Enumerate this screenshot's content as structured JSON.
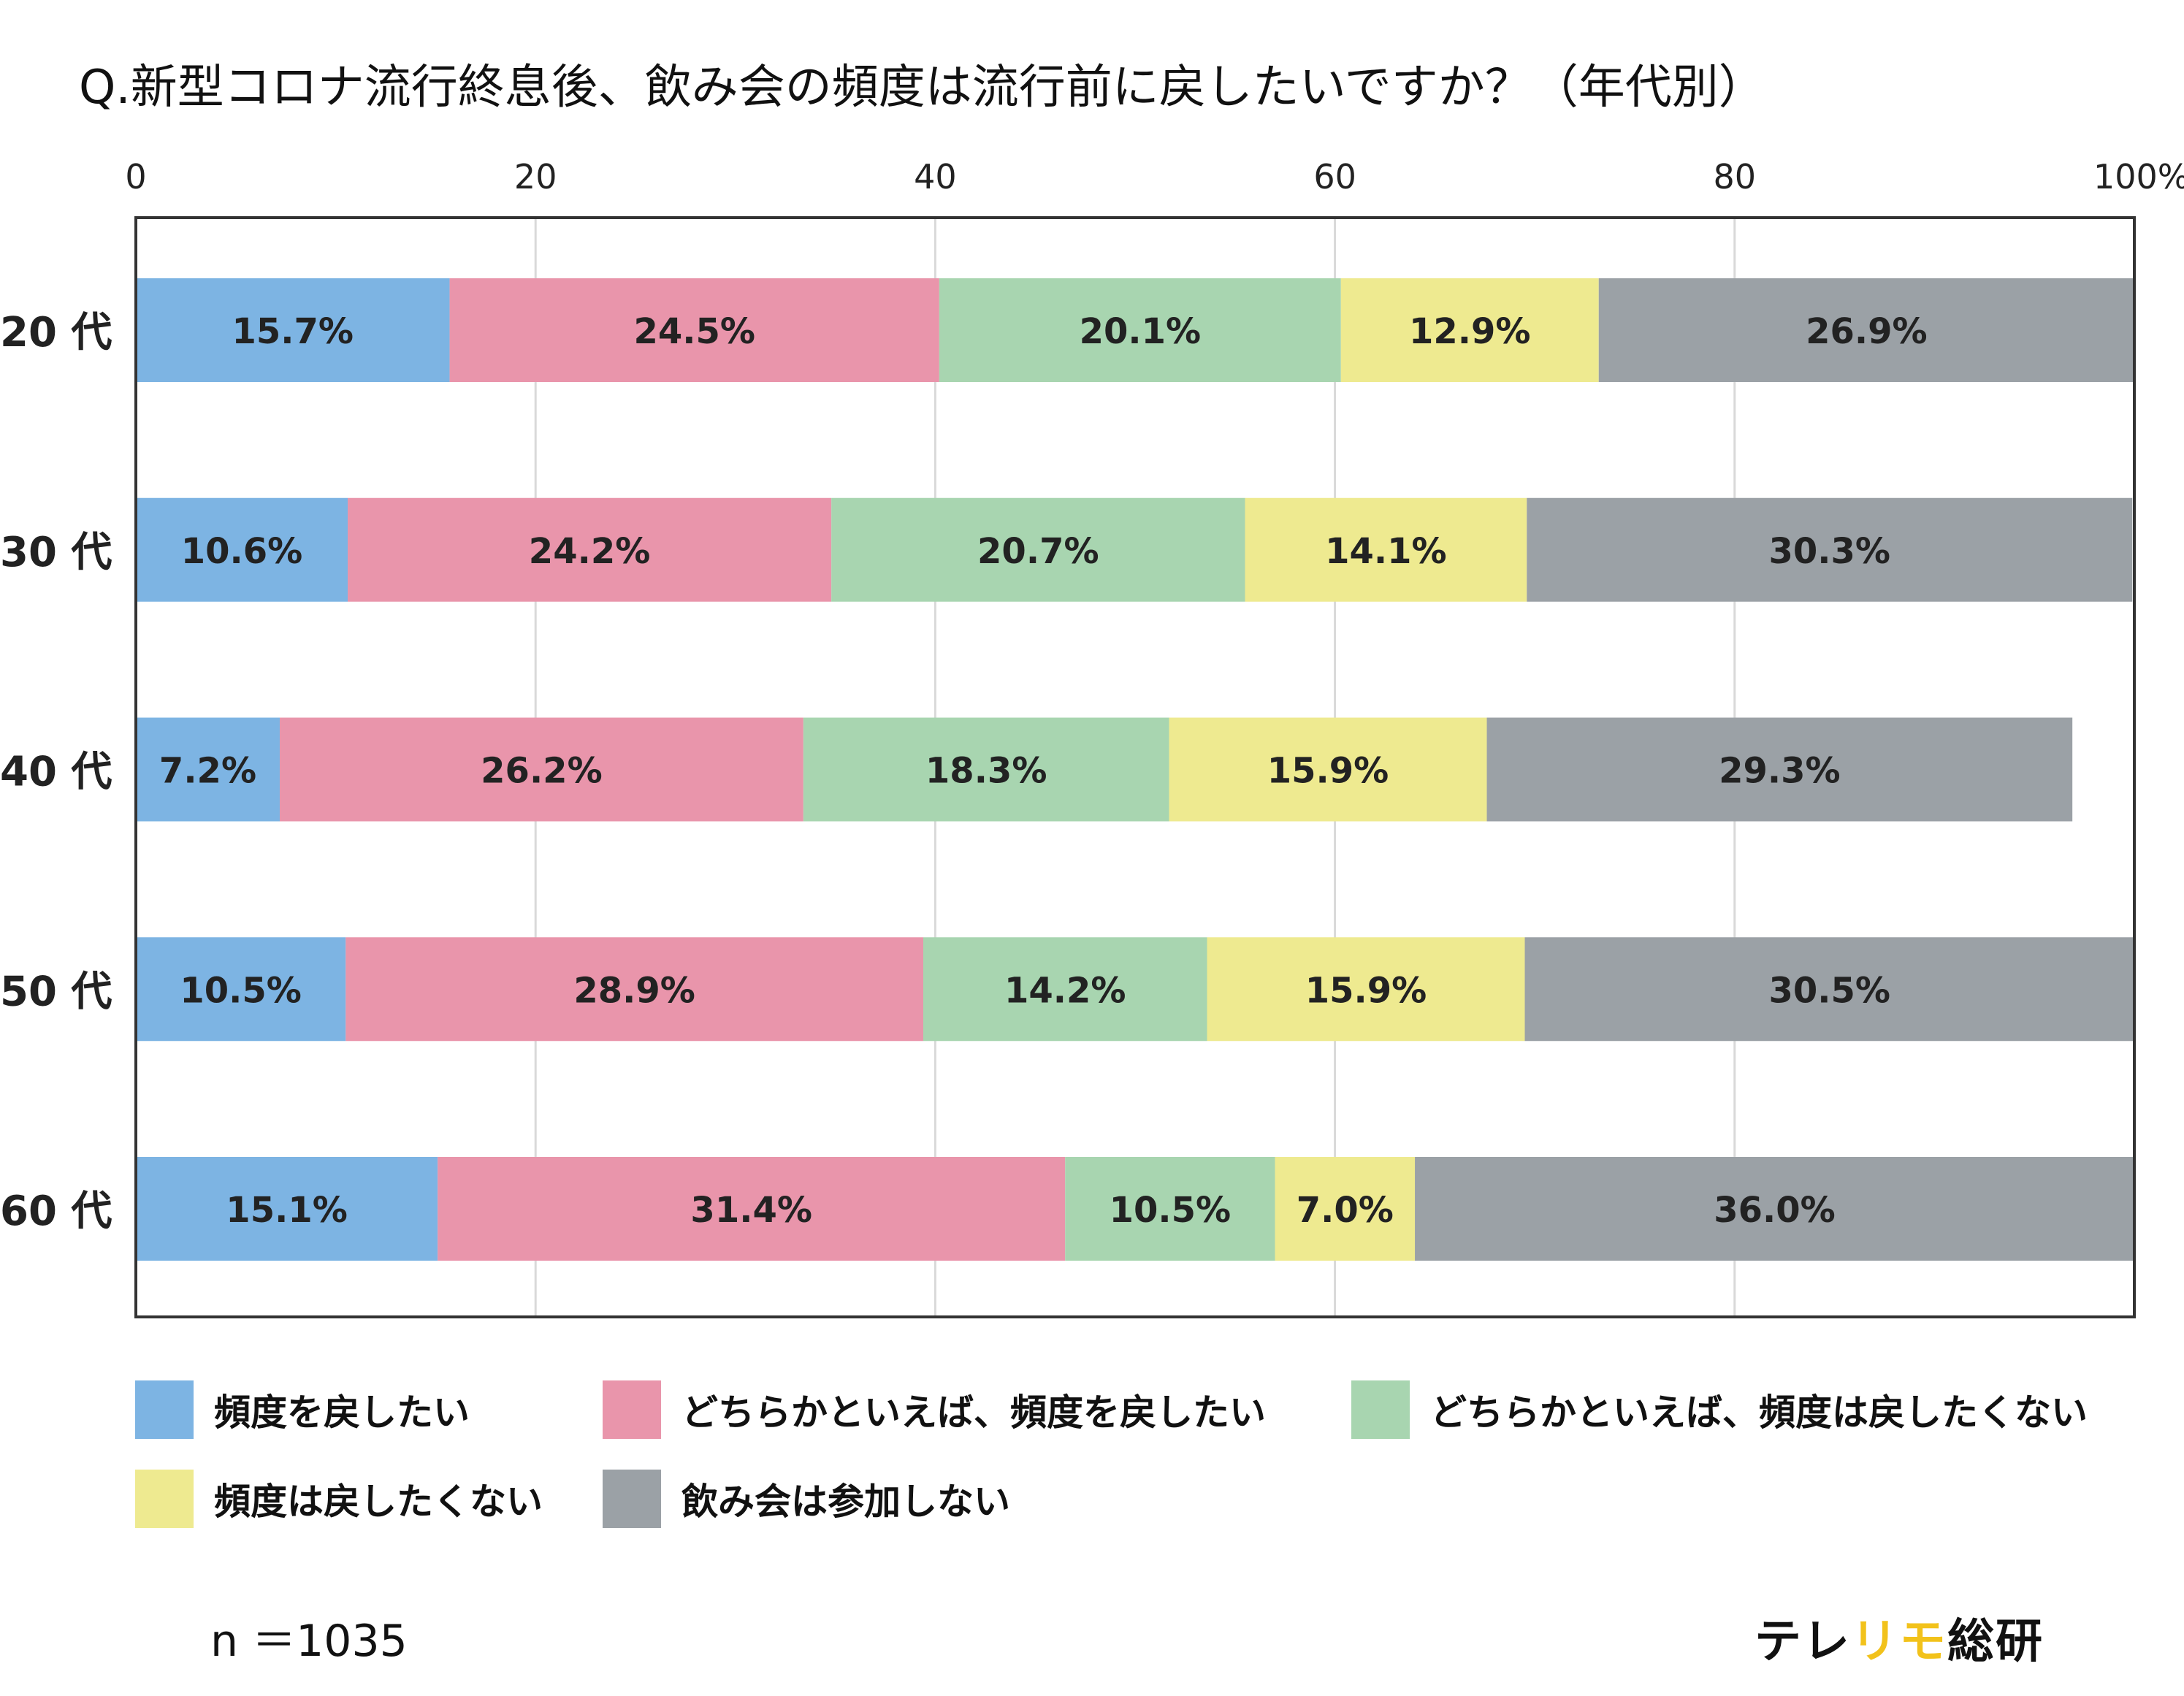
{
  "title": "Q.新型コロナ流行終息後、飲み会の頻度は流行前に戻したいですか？（年代別）",
  "note": "n ＝1035",
  "brand": {
    "part1": "テレ",
    "part2": "リモ",
    "part3": "総研",
    "accent_color": "#f2c21b"
  },
  "chart_data": {
    "type": "bar",
    "orientation": "horizontal",
    "stacked": true,
    "title": "Q.新型コロナ流行終息後、飲み会の頻度は流行前に戻したいですか？（年代別）",
    "categories": [
      "20 代",
      "30 代",
      "40 代",
      "50 代",
      "60 代"
    ],
    "xlim": [
      0,
      100
    ],
    "x_ticks": [
      "0",
      "20",
      "40",
      "60",
      "80",
      "100%"
    ],
    "x_tick_values": [
      0,
      20,
      40,
      60,
      80,
      100
    ],
    "grid": true,
    "legend_position": "bottom",
    "series": [
      {
        "name": "頻度を戻したい",
        "color": "#7db4e3",
        "values": [
          15.7,
          10.6,
          7.2,
          10.5,
          15.1
        ],
        "labels": [
          "15.7%",
          "10.6%",
          "7.2%",
          "10.5%",
          "15.1%"
        ]
      },
      {
        "name": "どちらかといえば、頻度を戻したい",
        "color": "#e995ab",
        "values": [
          24.5,
          24.2,
          26.2,
          28.9,
          31.4
        ],
        "labels": [
          "24.5%",
          "24.2%",
          "26.2%",
          "28.9%",
          "31.4%"
        ]
      },
      {
        "name": "どちらかといえば、頻度は戻したくない",
        "color": "#a8d5b0",
        "values": [
          20.1,
          20.7,
          18.3,
          14.2,
          10.5
        ],
        "labels": [
          "20.1%",
          "20.7%",
          "18.3%",
          "14.2%",
          "10.5%"
        ]
      },
      {
        "name": "頻度は戻したくない",
        "color": "#eeea90",
        "values": [
          12.9,
          14.1,
          15.9,
          15.9,
          7.0
        ],
        "labels": [
          "12.9%",
          "14.1%",
          "15.9%",
          "15.9%",
          "7.0%"
        ]
      },
      {
        "name": "飲み会は参加しない",
        "color": "#9ba1a6",
        "values": [
          26.9,
          30.3,
          29.3,
          30.5,
          36.0
        ],
        "labels": [
          "26.9%",
          "30.3%",
          "29.3%",
          "30.5%",
          "36.0%"
        ]
      }
    ]
  }
}
